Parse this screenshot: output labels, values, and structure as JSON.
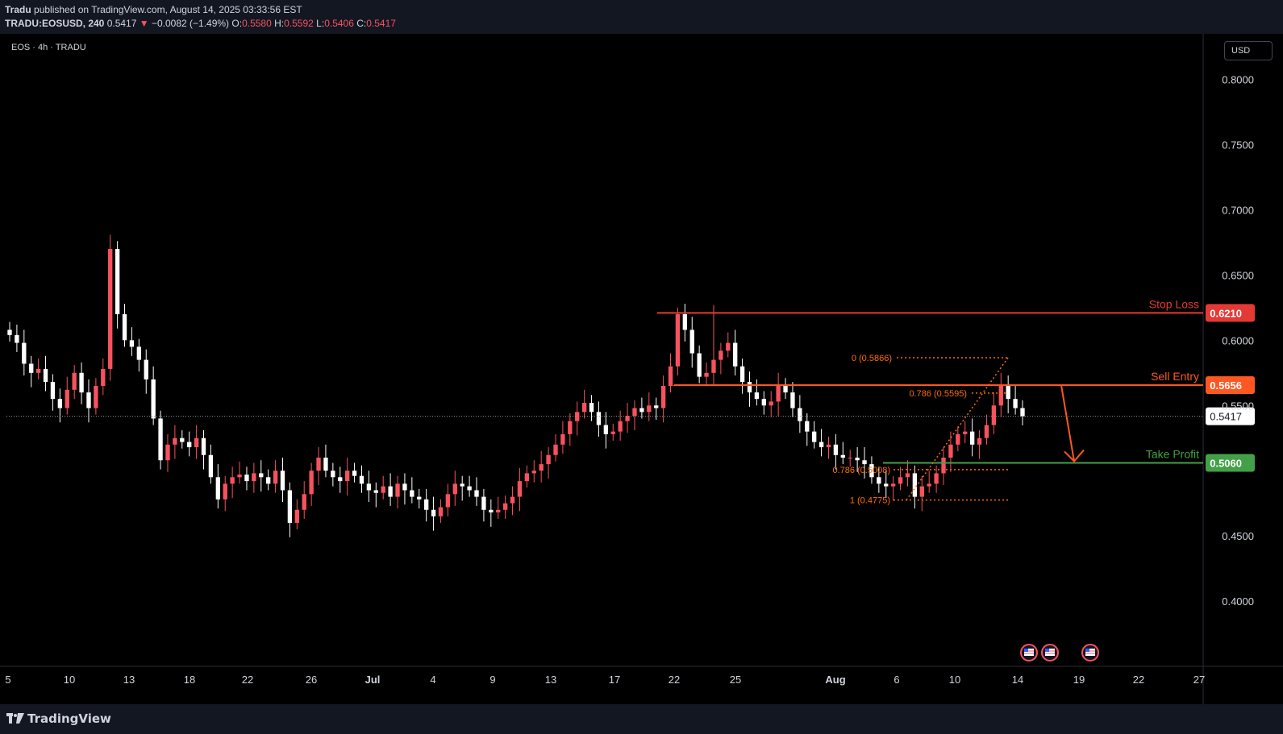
{
  "header": {
    "author": "Tradu",
    "published_text": "published on TradingView.com, August 14, 2025 03:33:56 EST",
    "symbol": "TRADU:EOSUSD, 240",
    "last": "0.5417",
    "arrow": "▼",
    "change": "−0.0082 (−1.49%)",
    "o_label": "O:",
    "o_value": "0.5580",
    "h_label": "H:",
    "h_value": "0.5592",
    "l_label": "L:",
    "l_value": "0.5406",
    "c_label": "C:",
    "c_value": "0.5417"
  },
  "chart_label": "EOS · 4h · TRADU",
  "currency": "USD",
  "footer": {
    "brand": "TradingView"
  },
  "colors": {
    "up": "#f7525f",
    "down": "#ffffff",
    "stop_loss": "#e53935",
    "sell_entry": "#ff5722",
    "take_profit": "#43a047",
    "fib": "#ff6d00"
  },
  "chart_data": {
    "type": "candlestick",
    "title": "EOS · 4h · TRADU",
    "ylim": [
      0.35,
      0.83
    ],
    "y_ticks": [
      "0.8000",
      "0.7500",
      "0.7000",
      "0.6500",
      "0.6000",
      "0.5500",
      "0.4500",
      "0.4000"
    ],
    "x_ticks": [
      "5",
      "10",
      "13",
      "18",
      "22",
      "26",
      "Jul",
      "4",
      "9",
      "13",
      "17",
      "22",
      "25",
      "Aug",
      "6",
      "10",
      "14",
      "19",
      "22",
      "27"
    ],
    "grid": false,
    "last_price": 0.5417,
    "levels": [
      {
        "name": "Stop Loss",
        "value": 0.621,
        "label": "0.6210"
      },
      {
        "name": "Sell Entry",
        "value": 0.5656,
        "label": "0.5656"
      },
      {
        "name": "Take Profit",
        "value": 0.506,
        "label": "0.5060"
      }
    ],
    "fib_levels": [
      {
        "label": "0 (0.5866)",
        "value": 0.5866
      },
      {
        "label": "0.786 (0.5595)",
        "value": 0.5595
      },
      {
        "label": "0.786 (0.5008)",
        "value": 0.5008
      },
      {
        "label": "1 (0.4775)",
        "value": 0.4775
      }
    ],
    "close_path": [
      0.604,
      0.598,
      0.582,
      0.575,
      0.578,
      0.568,
      0.555,
      0.548,
      0.562,
      0.575,
      0.56,
      0.548,
      0.565,
      0.578,
      0.67,
      0.62,
      0.6,
      0.595,
      0.585,
      0.57,
      0.54,
      0.508,
      0.52,
      0.525,
      0.522,
      0.518,
      0.525,
      0.512,
      0.495,
      0.478,
      0.49,
      0.495,
      0.497,
      0.492,
      0.498,
      0.495,
      0.49,
      0.5,
      0.485,
      0.46,
      0.47,
      0.482,
      0.5,
      0.51,
      0.5,
      0.495,
      0.492,
      0.5,
      0.496,
      0.49,
      0.485,
      0.483,
      0.488,
      0.48,
      0.49,
      0.485,
      0.48,
      0.478,
      0.47,
      0.465,
      0.472,
      0.482,
      0.49,
      0.488,
      0.485,
      0.48,
      0.47,
      0.468,
      0.47,
      0.475,
      0.48,
      0.492,
      0.498,
      0.5,
      0.505,
      0.512,
      0.52,
      0.528,
      0.538,
      0.545,
      0.552,
      0.545,
      0.535,
      0.528,
      0.53,
      0.538,
      0.542,
      0.548,
      0.545,
      0.55,
      0.548,
      0.565,
      0.58,
      0.62,
      0.608,
      0.59,
      0.572,
      0.575,
      0.585,
      0.592,
      0.598,
      0.58,
      0.568,
      0.56,
      0.555,
      0.55,
      0.553,
      0.565,
      0.56,
      0.548,
      0.538,
      0.53,
      0.522,
      0.518,
      0.52,
      0.512,
      0.51,
      0.51,
      0.508,
      0.505,
      0.495,
      0.49,
      0.488,
      0.49,
      0.495,
      0.498,
      0.48,
      0.488,
      0.49,
      0.498,
      0.51,
      0.52,
      0.528,
      0.53,
      0.52,
      0.525,
      0.535,
      0.55,
      0.565,
      0.555,
      0.548,
      0.5417
    ],
    "wick_spikes": [
      {
        "index": 14,
        "high": 0.681
      },
      {
        "index": 93,
        "high": 0.625
      },
      {
        "index": 98,
        "high": 0.627
      },
      {
        "index": 138,
        "high": 0.575
      }
    ]
  }
}
